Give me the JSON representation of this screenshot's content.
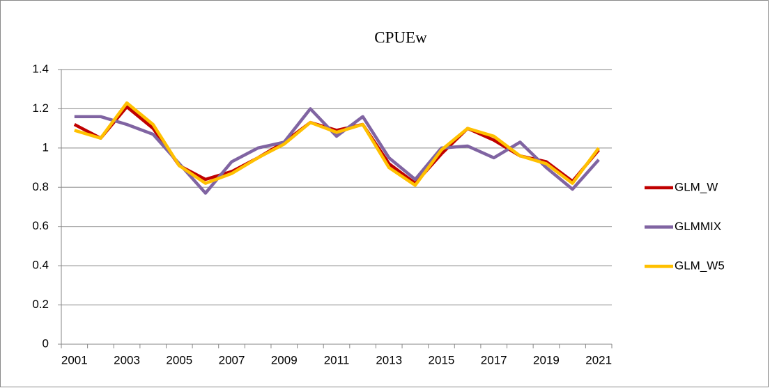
{
  "chart_data": {
    "type": "line",
    "title": "CPUEw",
    "categories": [
      "2001",
      null,
      "2003",
      null,
      "2005",
      null,
      "2007",
      null,
      "2009",
      null,
      "2011",
      null,
      "2013",
      null,
      "2015",
      null,
      "2017",
      null,
      "2019",
      null,
      "2021"
    ],
    "series": [
      {
        "name": "GLM_W",
        "color": "#c00000",
        "values": [
          1.12,
          1.05,
          1.21,
          1.1,
          0.91,
          0.84,
          0.88,
          0.95,
          1.03,
          1.13,
          1.09,
          1.12,
          0.92,
          0.82,
          0.97,
          1.1,
          1.04,
          0.96,
          0.93,
          0.83,
          0.99
        ]
      },
      {
        "name": "GLMMIX",
        "color": "#8064a2",
        "values": [
          1.16,
          1.16,
          1.12,
          1.07,
          0.92,
          0.77,
          0.93,
          1.0,
          1.03,
          1.2,
          1.06,
          1.16,
          0.95,
          0.84,
          1.0,
          1.01,
          0.95,
          1.03,
          0.9,
          0.79,
          0.94
        ]
      },
      {
        "name": "GLM_W5",
        "color": "#ffc000",
        "values": [
          1.09,
          1.05,
          1.23,
          1.12,
          0.91,
          0.82,
          0.87,
          0.95,
          1.02,
          1.13,
          1.08,
          1.12,
          0.9,
          0.81,
          0.99,
          1.1,
          1.06,
          0.96,
          0.92,
          0.82,
          1.0
        ]
      }
    ],
    "ylim": [
      0,
      1.4
    ],
    "yticks": [
      0,
      0.2,
      0.4,
      0.6,
      0.8,
      1,
      1.2,
      1.4
    ],
    "grid": true,
    "legend": "right"
  }
}
